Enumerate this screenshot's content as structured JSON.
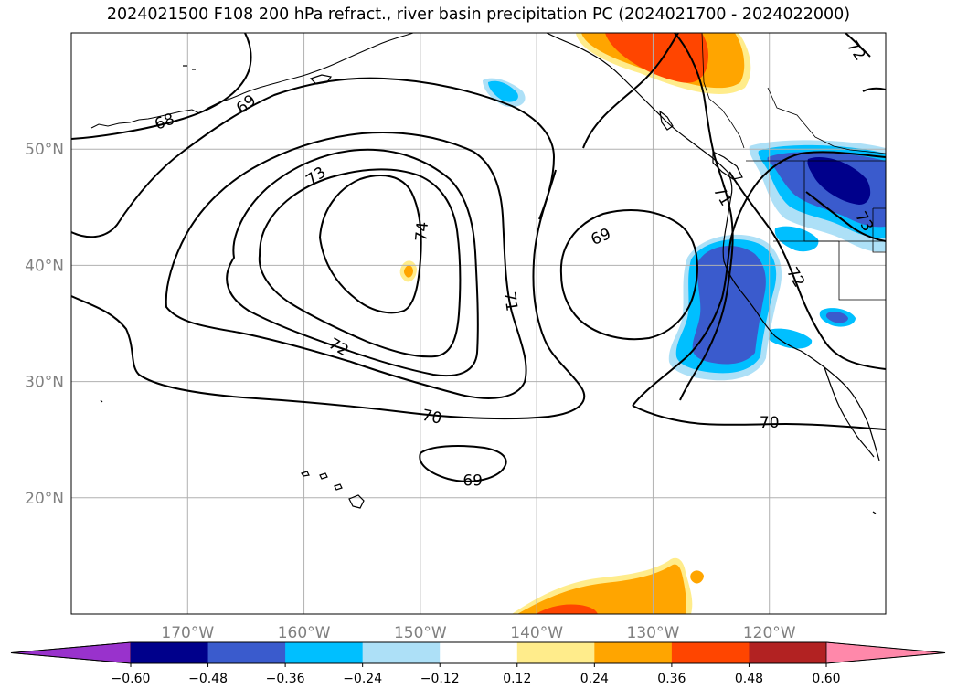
{
  "title": "2024021500 F108 200 hPa refract., river basin precipitation PC (2024021700 - 2024022000)",
  "colors": {
    "gridline": "#b0b0b0",
    "coast": "#000000",
    "contour": "#000000",
    "tick_label": "#808080"
  },
  "map": {
    "lon_range": [
      -180,
      -110
    ],
    "lat_range": [
      10,
      60
    ],
    "lat_ticks": [
      {
        "value": 20,
        "label": "20°N"
      },
      {
        "value": 30,
        "label": "30°N"
      },
      {
        "value": 40,
        "label": "40°N"
      },
      {
        "value": 50,
        "label": "50°N"
      }
    ],
    "lon_ticks": [
      {
        "value": -170,
        "label": "170°W"
      },
      {
        "value": -160,
        "label": "160°W"
      },
      {
        "value": -150,
        "label": "150°W"
      },
      {
        "value": -140,
        "label": "140°W"
      },
      {
        "value": -130,
        "label": "130°W"
      },
      {
        "value": -120,
        "label": "120°W"
      }
    ],
    "contour_labels": [
      {
        "text": "68",
        "lon": -172.0,
        "lat": 52.4,
        "rot": -20
      },
      {
        "text": "69",
        "lon": -165.0,
        "lat": 53.9,
        "rot": -38
      },
      {
        "text": "73",
        "lon": -159.0,
        "lat": 47.7,
        "rot": -36
      },
      {
        "text": "74",
        "lon": -149.9,
        "lat": 42.9,
        "rot": -85
      },
      {
        "text": "72",
        "lon": -157.0,
        "lat": 33.0,
        "rot": 30
      },
      {
        "text": "71",
        "lon": -142.2,
        "lat": 36.9,
        "rot": 82
      },
      {
        "text": "70",
        "lon": -149.0,
        "lat": 27.0,
        "rot": 12
      },
      {
        "text": "69",
        "lon": -145.5,
        "lat": 21.5,
        "rot": 0
      },
      {
        "text": "69",
        "lon": -134.5,
        "lat": 42.5,
        "rot": -22
      },
      {
        "text": "70",
        "lon": -120.0,
        "lat": 26.5,
        "rot": 0
      },
      {
        "text": "71",
        "lon": -124.0,
        "lat": 46.0,
        "rot": 60
      },
      {
        "text": "72",
        "lon": -117.7,
        "lat": 39.0,
        "rot": 60
      },
      {
        "text": "73",
        "lon": -111.8,
        "lat": 43.8,
        "rot": 60
      },
      {
        "text": "72",
        "lon": -112.5,
        "lat": 58.5,
        "rot": 55
      }
    ]
  },
  "colorbar": {
    "bounds": [
      "−0.60",
      "−0.48",
      "−0.36",
      "−0.24",
      "−0.12",
      "0.12",
      "0.24",
      "0.36",
      "0.48",
      "0.60"
    ],
    "colors": [
      "#9932cc",
      "#00008b",
      "#3a5bcd",
      "#00bfff",
      "#ade0f7",
      "#ffffff",
      "#ffec8b",
      "#ffa500",
      "#ff4500",
      "#b22222",
      "#ff88aa"
    ]
  }
}
